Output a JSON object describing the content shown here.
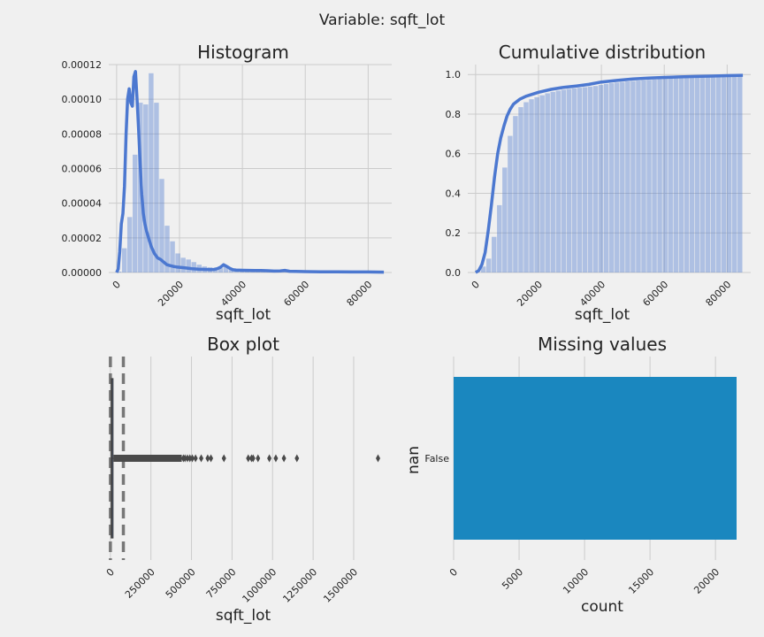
{
  "suptitle": "Variable: sqft_lot",
  "chart_data": [
    {
      "id": "histogram",
      "type": "histogram",
      "title": "Histogram",
      "xlabel": "sqft_lot",
      "ylabel": "",
      "xlim": [
        -2500,
        87500
      ],
      "ylim": [
        0,
        0.00012
      ],
      "xticks": [
        0,
        20000,
        40000,
        60000,
        80000
      ],
      "yticks": [
        0,
        2e-05,
        4e-05,
        6e-05,
        8e-05,
        0.0001,
        0.00012
      ],
      "ytick_labels": [
        "0.00000",
        "0.00002",
        "0.00004",
        "0.00006",
        "0.00008",
        "0.00010",
        "0.00012"
      ],
      "grid": true,
      "bins": {
        "start": 0,
        "width": 1700,
        "values": [
          5e-07,
          1.4e-05,
          3.2e-05,
          6.8e-05,
          9.8e-05,
          9.7e-05,
          0.000115,
          9.8e-05,
          5.4e-05,
          2.7e-05,
          1.8e-05,
          1.1e-05,
          8.5e-06,
          7.5e-06,
          6e-06,
          4.5e-06,
          3.5e-06,
          3e-06,
          2.5e-06,
          2.5e-06,
          4e-06,
          2.5e-06,
          2e-06,
          1.8e-06,
          1.6e-06,
          1.5e-06,
          1.4e-06,
          1.2e-06,
          1.1e-06,
          1e-06,
          1e-06,
          9e-07,
          9e-07,
          8e-07,
          8e-07,
          7e-07,
          7e-07,
          6e-07,
          6e-07,
          6e-07,
          5e-07,
          5e-07,
          5e-07,
          4e-07,
          4e-07,
          4e-07,
          4e-07,
          4e-07,
          3e-07,
          3e-07
        ]
      },
      "kde": {
        "x": [
          0,
          500,
          1000,
          1500,
          2000,
          2500,
          3000,
          3500,
          4000,
          4500,
          5000,
          5500,
          6000,
          6500,
          7000,
          7500,
          8000,
          8500,
          9000,
          9500,
          10000,
          11000,
          12000,
          13000,
          14000,
          15000,
          16000,
          17000,
          18000,
          19000,
          20000,
          22000,
          24000,
          26000,
          28000,
          30000,
          31000,
          32000,
          33000,
          34000,
          35000,
          36000,
          37000,
          38000,
          40000,
          42000,
          44000,
          46000,
          48000,
          50000,
          52000,
          53500,
          55000,
          57000,
          60000,
          65000,
          70000,
          75000,
          80000,
          85000
        ],
        "y": [
          0,
          2e-06,
          1.2e-05,
          2.8e-05,
          3.4e-05,
          5e-05,
          8e-05,
          0.0001,
          0.000106,
          9.8e-05,
          9.6e-05,
          0.000113,
          0.000116,
          0.0001,
          8.2e-05,
          6.2e-05,
          4.5e-05,
          3.4e-05,
          2.8e-05,
          2.4e-05,
          2.1e-05,
          1.5e-05,
          1.1e-05,
          8.5e-06,
          7.5e-06,
          6e-06,
          4.5e-06,
          4e-06,
          3.5e-06,
          3.2e-06,
          3e-06,
          2.6e-06,
          2.2e-06,
          1.9e-06,
          1.8e-06,
          1.7e-06,
          1.8e-06,
          2.2e-06,
          3e-06,
          4.5e-06,
          3.5e-06,
          2.4e-06,
          1.6e-06,
          1.4e-06,
          1.3e-06,
          1.2e-06,
          1.1e-06,
          1.1e-06,
          1e-06,
          8e-07,
          9e-07,
          1.2e-06,
          7e-07,
          6e-07,
          5e-07,
          4e-07,
          4e-07,
          3e-07,
          3e-07,
          2e-07
        ]
      }
    },
    {
      "id": "cumulative",
      "type": "area",
      "title": "Cumulative distribution",
      "xlabel": "sqft_lot",
      "ylabel": "",
      "xlim": [
        -2500,
        87500
      ],
      "ylim": [
        0,
        1.05
      ],
      "xticks": [
        0,
        20000,
        40000,
        60000,
        80000
      ],
      "yticks": [
        0,
        0.2,
        0.4,
        0.6,
        0.8,
        1.0
      ],
      "ytick_labels": [
        "0.0",
        "0.2",
        "0.4",
        "0.6",
        "0.8",
        "1.0"
      ],
      "grid": true,
      "bins": {
        "start": 0,
        "width": 1700,
        "values": [
          0.001,
          0.03,
          0.07,
          0.18,
          0.34,
          0.53,
          0.69,
          0.79,
          0.835,
          0.86,
          0.875,
          0.885,
          0.895,
          0.905,
          0.912,
          0.918,
          0.923,
          0.927,
          0.93,
          0.933,
          0.936,
          0.939,
          0.942,
          0.947,
          0.952,
          0.956,
          0.959,
          0.962,
          0.965,
          0.967,
          0.969,
          0.971,
          0.973,
          0.975,
          0.977,
          0.979,
          0.981,
          0.982,
          0.983,
          0.985,
          0.986,
          0.987,
          0.988,
          0.989,
          0.99,
          0.991,
          0.992,
          0.993,
          0.994,
          0.995
        ]
      },
      "curve": {
        "x": [
          0,
          1000,
          2000,
          3000,
          4000,
          5000,
          6000,
          7000,
          8000,
          9000,
          10000,
          11000,
          12000,
          14000,
          16000,
          18000,
          20000,
          24000,
          28000,
          32000,
          36000,
          40000,
          45000,
          50000,
          55000,
          60000,
          65000,
          70000,
          75000,
          80000,
          85000
        ],
        "y": [
          0,
          0.01,
          0.04,
          0.1,
          0.21,
          0.34,
          0.48,
          0.6,
          0.68,
          0.74,
          0.79,
          0.825,
          0.85,
          0.875,
          0.89,
          0.9,
          0.91,
          0.925,
          0.935,
          0.942,
          0.95,
          0.962,
          0.97,
          0.977,
          0.982,
          0.985,
          0.988,
          0.99,
          0.992,
          0.994,
          0.996
        ]
      }
    },
    {
      "id": "boxplot",
      "type": "box",
      "title": "Box plot",
      "xlabel": "sqft_lot",
      "ylabel": "",
      "xlim": [
        -10000,
        1680000
      ],
      "xticks": [
        0,
        250000,
        500000,
        750000,
        1000000,
        1250000,
        1500000
      ],
      "grid": true,
      "box": {
        "min": 520,
        "q1": 5040,
        "median": 7618,
        "q3": 10688,
        "whisker_high": 19160
      },
      "reference_lines": [
        0,
        80000
      ],
      "outlier_range": [
        19160,
        440000
      ],
      "outliers": [
        450000,
        460000,
        475000,
        490000,
        505000,
        525000,
        560000,
        600000,
        620000,
        700000,
        850000,
        870000,
        880000,
        910000,
        980000,
        1020000,
        1070000,
        1150000,
        1650000
      ]
    },
    {
      "id": "missing",
      "type": "bar",
      "orientation": "horizontal",
      "title": "Missing values",
      "xlabel": "count",
      "ylabel": "nan",
      "categories": [
        "False"
      ],
      "values": [
        21613
      ],
      "xlim": [
        0,
        21613
      ],
      "xticks": [
        0,
        5000,
        10000,
        15000,
        20000
      ],
      "grid": true,
      "color": "#1a87bf"
    }
  ],
  "colors": {
    "line": "#4c78d0",
    "hist": "#4c78d0",
    "bar": "#1a87bf",
    "grid": "#cbcbcb",
    "background": "#f0f0f0"
  }
}
